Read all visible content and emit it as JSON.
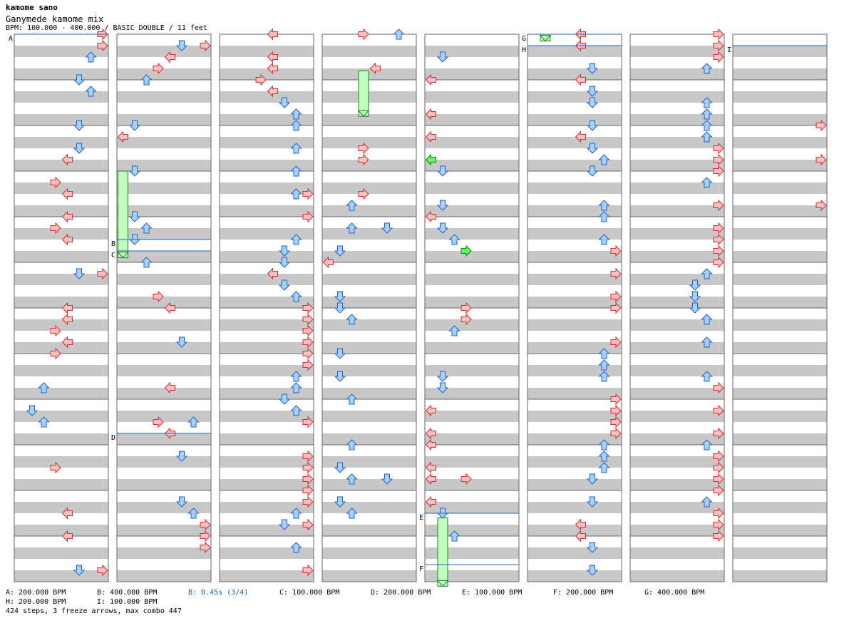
{
  "header": {
    "artist": "kamome sano",
    "song_title": "Ganymede kamome mix",
    "info_line": "BPM: 100.000 - 400.000 / BASIC DOUBLE / 11 feet"
  },
  "chart_data": {
    "type": "table",
    "title": "Ganymede kamome mix",
    "difficulty": "BASIC DOUBLE",
    "feet": 11,
    "bpm_range": [
      100,
      400
    ],
    "columns": 8,
    "measures_per_column": 12,
    "markers": [
      {
        "label": "A",
        "column": 0,
        "position": 0.0
      },
      {
        "label": "B",
        "column": 1,
        "position": 4.5
      },
      {
        "label": "C",
        "column": 1,
        "position": 4.75
      },
      {
        "label": "D",
        "column": 1,
        "position": 8.75
      },
      {
        "label": "E",
        "column": 4,
        "position": 10.5
      },
      {
        "label": "F",
        "column": 4,
        "position": 11.625
      },
      {
        "label": "G",
        "column": 5,
        "position": 0.0
      },
      {
        "label": "H",
        "column": 5,
        "position": 0.25
      },
      {
        "label": "I",
        "column": 7,
        "position": 0.25
      }
    ],
    "freezes": [
      {
        "column": 1,
        "lane": 0,
        "start": 3.0,
        "end": 4.9,
        "color": "green"
      },
      {
        "column": 3,
        "lane": 3,
        "start": 0.8,
        "end": 1.8,
        "color": "green"
      },
      {
        "column": 4,
        "lane": 1,
        "start": 10.6,
        "end": 12.1,
        "color": "green"
      },
      {
        "column": 5,
        "lane": 1,
        "start": -0.1,
        "end": 0.15,
        "color": "green"
      }
    ],
    "note_seed": 424
  },
  "legend": [
    {
      "text": "A: 200.000 BPM",
      "highlight": false
    },
    {
      "text": "B: 400.000 BPM",
      "highlight": false
    },
    {
      "text": "B: 0.45s (3/4)",
      "highlight": true
    },
    {
      "text": "C: 100.000 BPM",
      "highlight": false
    },
    {
      "text": "D: 200.000 BPM",
      "highlight": false
    },
    {
      "text": "E: 100.000 BPM",
      "highlight": false
    },
    {
      "text": "F: 200.000 BPM",
      "highlight": false
    },
    {
      "text": "G: 400.000 BPM",
      "highlight": false
    }
  ],
  "legend2": [
    {
      "text": "H: 200.000 BPM"
    },
    {
      "text": "I: 100.000 BPM"
    }
  ],
  "summary": "424 steps, 3 freeze arrows, max combo 447",
  "colors": {
    "stripe": "#c8c8c8",
    "red_fill": "#ffc0c0",
    "red_stroke": "#d03030",
    "blue_fill": "#a8d0ff",
    "blue_stroke": "#2060c0",
    "green_fill": "#60ff60",
    "green_stroke": "#108010",
    "freeze_fill": "#c0ffc0",
    "freeze_stroke": "#208020",
    "marker_line": "#2060c0"
  }
}
